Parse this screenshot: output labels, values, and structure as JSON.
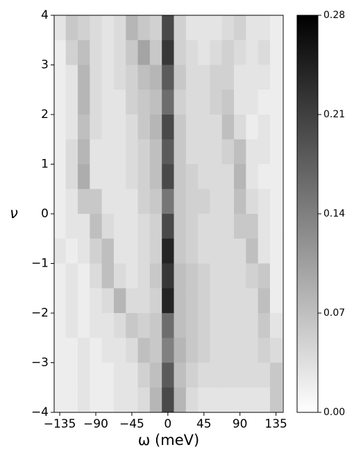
{
  "chart_data": {
    "type": "heatmap",
    "xlabel": "ω (meV)",
    "ylabel": "ν",
    "x": [
      -135,
      -120,
      -105,
      -90,
      -75,
      -60,
      -45,
      -30,
      -15,
      0,
      15,
      30,
      45,
      60,
      75,
      90,
      105,
      120,
      135
    ],
    "y": [
      3.75,
      3.25,
      2.75,
      2.25,
      1.75,
      1.25,
      0.75,
      0.25,
      -0.25,
      -0.75,
      -1.25,
      -1.75,
      -2.25,
      -2.75,
      -3.25,
      -3.75
    ],
    "z": [
      [
        0.03,
        0.06,
        0.05,
        0.04,
        0.03,
        0.04,
        0.08,
        0.06,
        0.05,
        0.2,
        0.05,
        0.03,
        0.03,
        0.03,
        0.04,
        0.05,
        0.03,
        0.03,
        0.02
      ],
      [
        0.02,
        0.05,
        0.07,
        0.04,
        0.03,
        0.04,
        0.06,
        0.1,
        0.06,
        0.22,
        0.05,
        0.04,
        0.03,
        0.04,
        0.05,
        0.04,
        0.03,
        0.04,
        0.02
      ],
      [
        0.02,
        0.03,
        0.08,
        0.04,
        0.03,
        0.04,
        0.05,
        0.07,
        0.08,
        0.18,
        0.06,
        0.04,
        0.04,
        0.05,
        0.05,
        0.03,
        0.03,
        0.03,
        0.02
      ],
      [
        0.02,
        0.03,
        0.08,
        0.04,
        0.03,
        0.03,
        0.05,
        0.06,
        0.07,
        0.16,
        0.05,
        0.04,
        0.04,
        0.05,
        0.06,
        0.03,
        0.03,
        0.02,
        0.02
      ],
      [
        0.02,
        0.03,
        0.07,
        0.04,
        0.03,
        0.03,
        0.04,
        0.06,
        0.08,
        0.2,
        0.06,
        0.04,
        0.04,
        0.04,
        0.07,
        0.04,
        0.02,
        0.03,
        0.02
      ],
      [
        0.02,
        0.04,
        0.08,
        0.03,
        0.03,
        0.03,
        0.04,
        0.05,
        0.07,
        0.18,
        0.06,
        0.04,
        0.04,
        0.04,
        0.05,
        0.07,
        0.03,
        0.03,
        0.02
      ],
      [
        0.02,
        0.04,
        0.09,
        0.03,
        0.03,
        0.03,
        0.04,
        0.05,
        0.07,
        0.2,
        0.06,
        0.05,
        0.04,
        0.04,
        0.04,
        0.08,
        0.03,
        0.02,
        0.02
      ],
      [
        0.02,
        0.03,
        0.06,
        0.06,
        0.03,
        0.03,
        0.03,
        0.05,
        0.06,
        0.15,
        0.06,
        0.05,
        0.05,
        0.04,
        0.04,
        0.07,
        0.04,
        0.03,
        0.02
      ],
      [
        0.02,
        0.03,
        0.03,
        0.07,
        0.04,
        0.03,
        0.03,
        0.04,
        0.05,
        0.2,
        0.06,
        0.05,
        0.04,
        0.04,
        0.04,
        0.06,
        0.06,
        0.03,
        0.02
      ],
      [
        0.03,
        0.02,
        0.03,
        0.05,
        0.07,
        0.03,
        0.03,
        0.04,
        0.05,
        0.24,
        0.06,
        0.05,
        0.04,
        0.04,
        0.04,
        0.04,
        0.07,
        0.03,
        0.02
      ],
      [
        0.02,
        0.03,
        0.02,
        0.04,
        0.07,
        0.04,
        0.03,
        0.04,
        0.06,
        0.22,
        0.07,
        0.06,
        0.05,
        0.04,
        0.04,
        0.04,
        0.05,
        0.06,
        0.02
      ],
      [
        0.02,
        0.03,
        0.02,
        0.03,
        0.04,
        0.08,
        0.04,
        0.04,
        0.05,
        0.24,
        0.07,
        0.06,
        0.05,
        0.04,
        0.04,
        0.04,
        0.04,
        0.07,
        0.02
      ],
      [
        0.02,
        0.03,
        0.02,
        0.03,
        0.03,
        0.04,
        0.06,
        0.05,
        0.06,
        0.16,
        0.07,
        0.06,
        0.05,
        0.04,
        0.04,
        0.04,
        0.04,
        0.06,
        0.03
      ],
      [
        0.02,
        0.02,
        0.03,
        0.02,
        0.03,
        0.03,
        0.04,
        0.07,
        0.06,
        0.14,
        0.08,
        0.06,
        0.05,
        0.04,
        0.04,
        0.04,
        0.04,
        0.05,
        0.04
      ],
      [
        0.02,
        0.02,
        0.03,
        0.02,
        0.02,
        0.03,
        0.03,
        0.05,
        0.07,
        0.18,
        0.07,
        0.05,
        0.04,
        0.04,
        0.04,
        0.04,
        0.04,
        0.04,
        0.06
      ],
      [
        0.02,
        0.02,
        0.03,
        0.02,
        0.02,
        0.03,
        0.03,
        0.04,
        0.08,
        0.2,
        0.08,
        0.04,
        0.03,
        0.03,
        0.03,
        0.03,
        0.03,
        0.03,
        0.06
      ]
    ],
    "xlim": [
      -142,
      144
    ],
    "ylim": [
      -4,
      4
    ],
    "xticks": [
      {
        "value": -135,
        "label": "−135"
      },
      {
        "value": -90,
        "label": "−90"
      },
      {
        "value": -45,
        "label": "−45"
      },
      0,
      45,
      90,
      135
    ],
    "yticks": [
      {
        "value": -4,
        "label": "−4"
      },
      {
        "value": -3,
        "label": "−3"
      },
      {
        "value": -2,
        "label": "−2"
      },
      {
        "value": -1,
        "label": "−1"
      },
      0,
      1,
      2,
      3,
      4
    ],
    "colormap": [
      "#ffffff",
      "#000000"
    ],
    "colorbar": {
      "lim": [
        0,
        0.28
      ],
      "ticks": [
        {
          "value": 0,
          "label": "0.00"
        },
        0.07,
        0.14,
        0.21,
        0.28
      ]
    }
  }
}
